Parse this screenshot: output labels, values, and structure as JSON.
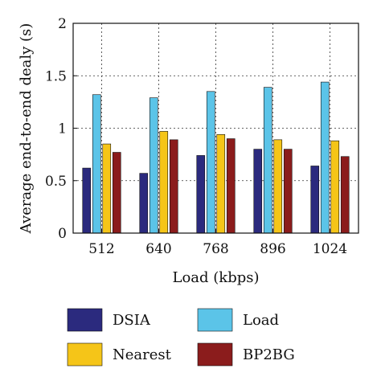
{
  "chart_data": {
    "type": "bar",
    "xlabel": "Load (kbps)",
    "ylabel": "Average end-to-end dealy (s)",
    "categories": [
      "512",
      "640",
      "768",
      "896",
      "1024"
    ],
    "ylim": [
      0,
      2
    ],
    "yticks": [
      "0",
      "0.5",
      "1",
      "1.5",
      "2"
    ],
    "ytick_values": [
      0,
      0.5,
      1,
      1.5,
      2
    ],
    "grid": "horizontal dashed",
    "legend_position": "bottom",
    "series": [
      {
        "name": "DSIA",
        "color": "#2b2a7e",
        "values": [
          0.62,
          0.57,
          0.74,
          0.8,
          0.64
        ]
      },
      {
        "name": "Load",
        "color": "#5bc4e8",
        "values": [
          1.32,
          1.29,
          1.35,
          1.39,
          1.44
        ]
      },
      {
        "name": "Nearest",
        "color": "#f5c518",
        "values": [
          0.85,
          0.97,
          0.94,
          0.89,
          0.88
        ]
      },
      {
        "name": "BP2BG",
        "color": "#8b1c1c",
        "values": [
          0.77,
          0.89,
          0.9,
          0.8,
          0.73
        ]
      }
    ]
  }
}
